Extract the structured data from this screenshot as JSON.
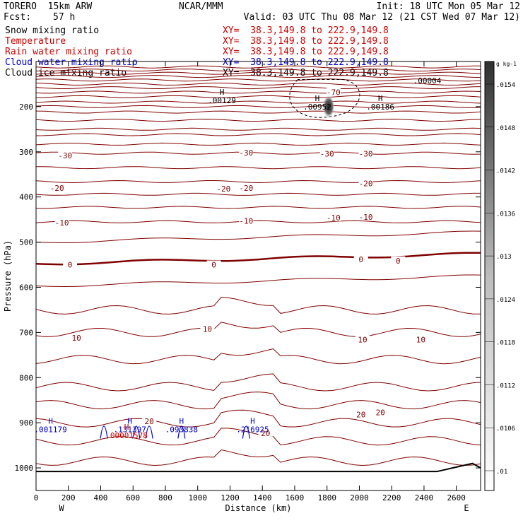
{
  "header": {
    "model": "TORERO  15km ARW",
    "center": "NCAR/MMM",
    "init": "Init: 18 UTC Mon 05 Mar 12",
    "fcst_label": "Fcst:",
    "fcst_value": "57 h",
    "valid": "Valid: 03 UTC Thu 08 Mar 12 (21 CST Wed 07 Mar 12)"
  },
  "fields": [
    {
      "label": "Snow mixing ratio",
      "color": "#000000",
      "xy": "XY=  38.3,149.8 to 222.9,149.8",
      "xy_color": "#cc0000"
    },
    {
      "label": "Temperature",
      "color": "#cc0000",
      "xy": "XY=  38.3,149.8 to 222.9,149.8",
      "xy_color": "#cc0000"
    },
    {
      "label": "Rain water mixing ratio",
      "color": "#cc0000",
      "xy": "XY=  38.3,149.8 to 222.9,149.8",
      "xy_color": "#cc0000"
    },
    {
      "label": "Cloud water mixing ratio",
      "color": "#0000cc",
      "xy": "XY=  38.3,149.8 to 222.9,149.8",
      "xy_color": "#0000cc"
    },
    {
      "label": "Cloud ice mixing ratio",
      "color": "#000000",
      "xy": "XY=  38.3,149.8 to 222.9,149.8",
      "xy_color": "#000000"
    }
  ],
  "chart_data": {
    "type": "contour",
    "xlabel": "Distance (km)",
    "ylabel": "Pressure (hPa)",
    "xlim": [
      0,
      2750
    ],
    "ylim": [
      1050,
      100
    ],
    "xticks": [
      0,
      200,
      400,
      600,
      800,
      1000,
      1200,
      1400,
      1600,
      1800,
      2000,
      2200,
      2400,
      2600
    ],
    "yticks": [
      200,
      300,
      400,
      500,
      600,
      700,
      800,
      900,
      1000
    ],
    "x_end_labels": {
      "left": "W",
      "right": "E"
    },
    "temperature_contour_labels": [
      {
        "text": "-70",
        "x": 1840,
        "p": 168
      },
      {
        "text": "-30",
        "x": 180,
        "p": 308
      },
      {
        "text": "-30",
        "x": 1300,
        "p": 302
      },
      {
        "text": "-30",
        "x": 1800,
        "p": 304
      },
      {
        "text": "-30",
        "x": 2040,
        "p": 304
      },
      {
        "text": "-20",
        "x": 130,
        "p": 380
      },
      {
        "text": "-20",
        "x": 1160,
        "p": 382
      },
      {
        "text": "-20",
        "x": 1300,
        "p": 380
      },
      {
        "text": "-20",
        "x": 2040,
        "p": 370
      },
      {
        "text": "-10",
        "x": 160,
        "p": 457
      },
      {
        "text": "-10",
        "x": 1300,
        "p": 453
      },
      {
        "text": "-10",
        "x": 1840,
        "p": 446
      },
      {
        "text": "-10",
        "x": 2040,
        "p": 444
      },
      {
        "text": "0",
        "x": 210,
        "p": 550
      },
      {
        "text": "0",
        "x": 1100,
        "p": 550
      },
      {
        "text": "0",
        "x": 2010,
        "p": 538
      },
      {
        "text": "0",
        "x": 2240,
        "p": 541
      },
      {
        "text": "10",
        "x": 250,
        "p": 712
      },
      {
        "text": "10",
        "x": 1060,
        "p": 692
      },
      {
        "text": "10",
        "x": 2020,
        "p": 716
      },
      {
        "text": "10",
        "x": 2380,
        "p": 716
      },
      {
        "text": "20",
        "x": 700,
        "p": 897
      },
      {
        "text": "20",
        "x": 1420,
        "p": 923
      },
      {
        "text": "20",
        "x": 2010,
        "p": 882
      },
      {
        "text": "20",
        "x": 2130,
        "p": 877
      }
    ],
    "extrema_labels": [
      {
        "type": "H",
        "value": ".00129",
        "x": 1150,
        "p": 186,
        "color": "#000000"
      },
      {
        "type": "H",
        "value": ".00952",
        "x": 1740,
        "p": 200,
        "color": "#000000"
      },
      {
        "type": "H",
        "value": ".00186",
        "x": 2130,
        "p": 200,
        "color": "#000000"
      },
      {
        "type": "",
        "value": ".00004",
        "x": 2420,
        "p": 142,
        "color": "#000000"
      },
      {
        "type": "H",
        "value": ".001179",
        "x": 90,
        "p": 915,
        "color": "#0000cc"
      },
      {
        "type": "H",
        "value": ".131397",
        "x": 580,
        "p": 915,
        "color": "#0000cc"
      },
      {
        "type": "H",
        "value": ".00001578",
        "x": 560,
        "p": 928,
        "color": "#cc0000"
      },
      {
        "type": "H",
        "value": ".093838",
        "x": 900,
        "p": 915,
        "color": "#0000cc"
      },
      {
        "type": "H",
        "value": ".216925",
        "x": 1340,
        "p": 915,
        "color": "#0000cc"
      }
    ],
    "colorbar": {
      "unit": "g kg-1",
      "levels": [
        ".01",
        ".0106",
        ".0112",
        ".0118",
        ".0124",
        ".013",
        ".0136",
        ".0142",
        ".0148",
        ".0154"
      ]
    },
    "colors": {
      "temperature": "#800000",
      "cloud_water": "#0000cc",
      "snow": "#000000",
      "terrain": "#000000"
    }
  }
}
